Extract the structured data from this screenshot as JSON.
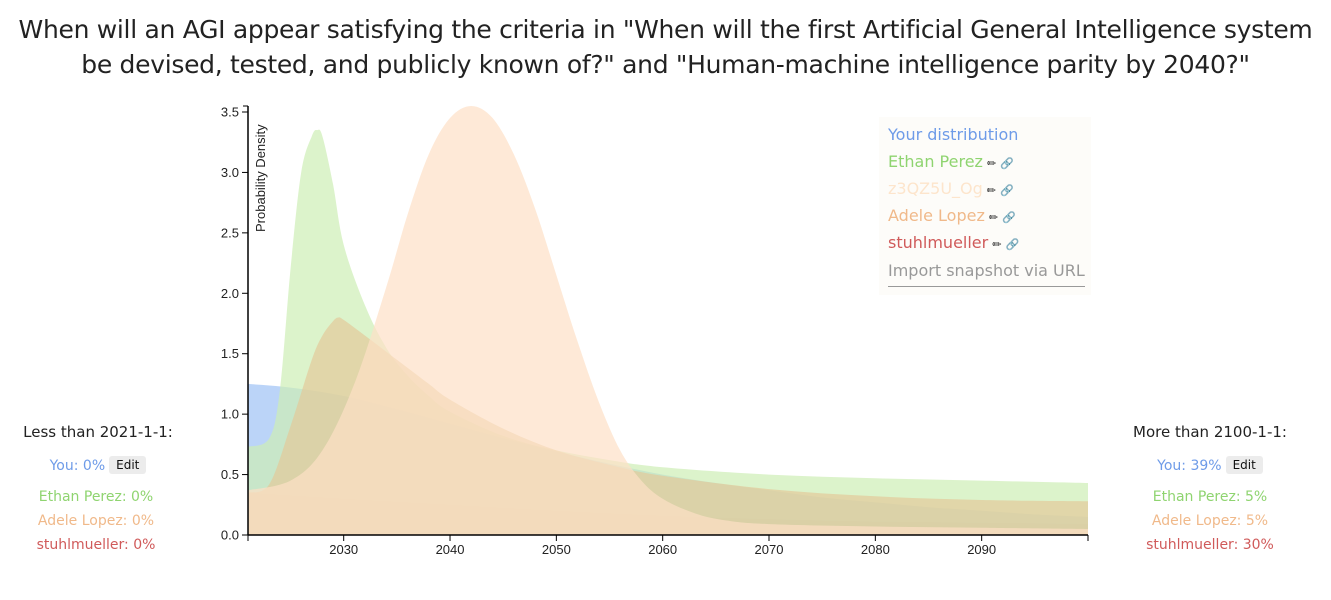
{
  "title_line1": "When will an AGI appear satisfying the criteria in \"When will the first Artificial General Intelligence system",
  "title_line2": "be devised, tested, and publicly known of?\" and \"Human-machine intelligence parity by 2040?\"",
  "legend": {
    "items": [
      {
        "label": "Your distribution",
        "color": "#6e9be8",
        "icons": false
      },
      {
        "label": "Ethan Perez",
        "color": "#8fd470",
        "icons": true
      },
      {
        "label": "z3QZ5U_Og",
        "color": "#fde5cc",
        "icons": true
      },
      {
        "label": "Adele Lopez",
        "color": "#f0b98a",
        "icons": true
      },
      {
        "label": "stuhlmueller",
        "color": "#d05a5a",
        "icons": true
      }
    ],
    "import_label": "Import snapshot via URL",
    "edit_icon": "pencil-icon",
    "link_icon": "link-icon"
  },
  "left_panel": {
    "header": "Less than 2021-1-1:",
    "you": "You: 0%",
    "edit": "Edit",
    "rows": [
      {
        "text": "Ethan Perez:  0%",
        "color": "#8fd470"
      },
      {
        "text": "Adele Lopez:  0%",
        "color": "#f0b98a"
      },
      {
        "text": "stuhlmueller:  0%",
        "color": "#d05a5a"
      }
    ]
  },
  "right_panel": {
    "header": "More than 2100-1-1:",
    "you": "You: 39%",
    "edit": "Edit",
    "rows": [
      {
        "text": "Ethan Perez:  5%",
        "color": "#8fd470"
      },
      {
        "text": "Adele Lopez:  5%",
        "color": "#f0b98a"
      },
      {
        "text": "stuhlmueller: 30%",
        "color": "#d05a5a"
      }
    ]
  },
  "chart_data": {
    "type": "area",
    "title": "When will an AGI appear satisfying the criteria in \"When will the first Artificial General Intelligence system be devised, tested, and publicly known of?\" and \"Human-machine intelligence parity by 2040?\"",
    "xlabel": "",
    "ylabel": "Probability Density",
    "xlim": [
      2021,
      2100
    ],
    "ylim": [
      0,
      3.5
    ],
    "x_ticks": [
      2030,
      2040,
      2050,
      2060,
      2070,
      2080,
      2090
    ],
    "y_ticks": [
      "0.0",
      "0.5",
      "1.0",
      "1.5",
      "2.0",
      "2.5",
      "3.0",
      "3.5"
    ],
    "legend_position": "top-right",
    "series": [
      {
        "name": "stuhlmueller",
        "color": "#d9a0a0",
        "x": [
          2021,
          2030,
          2040,
          2050,
          2060,
          2070,
          2080,
          2090,
          2100
        ],
        "values": [
          0.35,
          0.3,
          0.25,
          0.2,
          0.16,
          0.13,
          0.11,
          0.1,
          0.09
        ]
      },
      {
        "name": "Your distribution",
        "color": "#9ec2f5",
        "x": [
          2021,
          2025,
          2030,
          2035,
          2040,
          2045,
          2050,
          2055,
          2060,
          2065,
          2070,
          2075,
          2080,
          2085,
          2090,
          2095,
          2100
        ],
        "values": [
          1.25,
          1.22,
          1.15,
          1.04,
          0.92,
          0.8,
          0.69,
          0.59,
          0.5,
          0.43,
          0.37,
          0.31,
          0.27,
          0.23,
          0.2,
          0.17,
          0.15
        ]
      },
      {
        "name": "Ethan Perez",
        "color": "#cdeeb5",
        "x": [
          2021,
          2023,
          2024,
          2025,
          2026,
          2027,
          2027.5,
          2028,
          2029,
          2030,
          2032,
          2034,
          2036,
          2038,
          2040,
          2045,
          2050,
          2055,
          2060,
          2070,
          2080,
          2090,
          2100
        ],
        "values": [
          0.73,
          0.8,
          1.2,
          2.2,
          3.0,
          3.3,
          3.35,
          3.3,
          2.9,
          2.4,
          1.9,
          1.55,
          1.32,
          1.15,
          1.02,
          0.82,
          0.7,
          0.62,
          0.56,
          0.5,
          0.47,
          0.45,
          0.43
        ]
      },
      {
        "name": "Adele Lopez",
        "color": "#e3c99a",
        "x": [
          2021,
          2023,
          2025,
          2027,
          2028,
          2029,
          2029.5,
          2030,
          2032,
          2035,
          2038,
          2040,
          2045,
          2050,
          2055,
          2060,
          2070,
          2080,
          2090,
          2100
        ],
        "values": [
          0.35,
          0.42,
          0.9,
          1.45,
          1.65,
          1.77,
          1.8,
          1.78,
          1.65,
          1.45,
          1.25,
          1.12,
          0.88,
          0.7,
          0.58,
          0.49,
          0.38,
          0.32,
          0.29,
          0.28
        ]
      },
      {
        "name": "z3QZ5U_Og",
        "color": "#fde0c6",
        "x": [
          2021,
          2025,
          2028,
          2031,
          2034,
          2036,
          2038,
          2040,
          2042,
          2044,
          2046,
          2048,
          2050,
          2052,
          2054,
          2056,
          2058,
          2060,
          2063,
          2066,
          2070,
          2080,
          2090,
          2100
        ],
        "values": [
          0.37,
          0.45,
          0.7,
          1.25,
          2.05,
          2.65,
          3.15,
          3.45,
          3.55,
          3.45,
          3.15,
          2.7,
          2.15,
          1.6,
          1.1,
          0.7,
          0.45,
          0.3,
          0.18,
          0.12,
          0.09,
          0.07,
          0.06,
          0.05
        ]
      }
    ]
  }
}
